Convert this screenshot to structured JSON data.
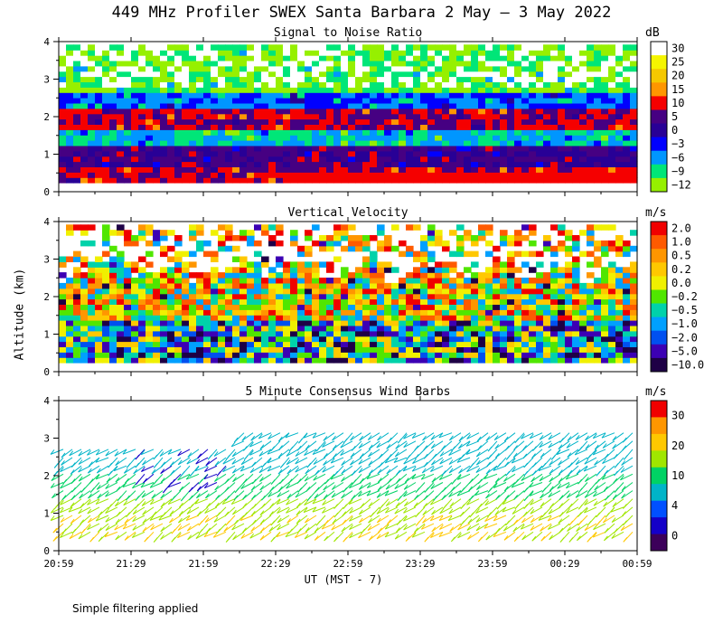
{
  "figure": {
    "title": "449 MHz Profiler SWEX Santa Barbara  2 May —  3 May 2022",
    "ylabel": "Altitude (km)",
    "xlabel": "UT  (MST - 7)",
    "footnote": "Simple filtering applied"
  },
  "chart_data": [
    {
      "type": "heatmap",
      "title": "Signal to Noise Ratio",
      "unit": "dB",
      "x_ticks": [
        "20:59",
        "21:29",
        "21:59",
        "22:29",
        "22:59",
        "23:29",
        "23:59",
        "00:29",
        "00:59"
      ],
      "ylim": [
        0,
        4
      ],
      "y_ticks": [
        "0",
        "1",
        "2",
        "3",
        "4"
      ],
      "colorbar_labels": [
        "30",
        "25",
        "20",
        "15",
        "10",
        "5",
        "0",
        "−3",
        "−6",
        "−9",
        "−12"
      ],
      "colorbar_colors": [
        "#ffffff",
        "#f5f500",
        "#f5c800",
        "#ff9600",
        "#f50000",
        "#460082",
        "#280096",
        "#0000ff",
        "#0096ff",
        "#00e678",
        "#96f000"
      ]
    },
    {
      "type": "heatmap",
      "title": "Vertical Velocity",
      "unit": "m/s",
      "x_ticks": [
        "20:59",
        "21:29",
        "21:59",
        "22:29",
        "22:59",
        "23:29",
        "23:59",
        "00:29",
        "00:59"
      ],
      "ylim": [
        0,
        4
      ],
      "y_ticks": [
        "0",
        "1",
        "2",
        "3",
        "4"
      ],
      "colorbar_labels": [
        "2.0",
        "1.0",
        "0.5",
        "0.2",
        "0.0",
        "−0.2",
        "−0.5",
        "−1.0",
        "−2.0",
        "−5.0",
        "−10.0"
      ],
      "colorbar_colors": [
        "#f00000",
        "#ff5a00",
        "#ff9600",
        "#ffc800",
        "#f0f000",
        "#50e600",
        "#00d2aa",
        "#00a0ff",
        "#0050f0",
        "#3c00b4",
        "#1e0046"
      ]
    },
    {
      "type": "wind_barbs",
      "title": "5 Minute Consensus Wind Barbs",
      "unit": "m/s",
      "x_ticks": [
        "20:59",
        "21:29",
        "21:59",
        "22:29",
        "22:59",
        "23:29",
        "23:59",
        "00:29",
        "00:59"
      ],
      "ylim": [
        0,
        4
      ],
      "y_ticks": [
        "0",
        "1",
        "2",
        "3",
        "4"
      ],
      "colorbar_labels": [
        "30",
        "20",
        "10",
        "4",
        "0"
      ],
      "colorbar_colors": [
        "#f00000",
        "#ff9600",
        "#ffc800",
        "#a0e600",
        "#00d264",
        "#00b4c8",
        "#0050ff",
        "#1400c8",
        "#3c005a"
      ]
    }
  ]
}
